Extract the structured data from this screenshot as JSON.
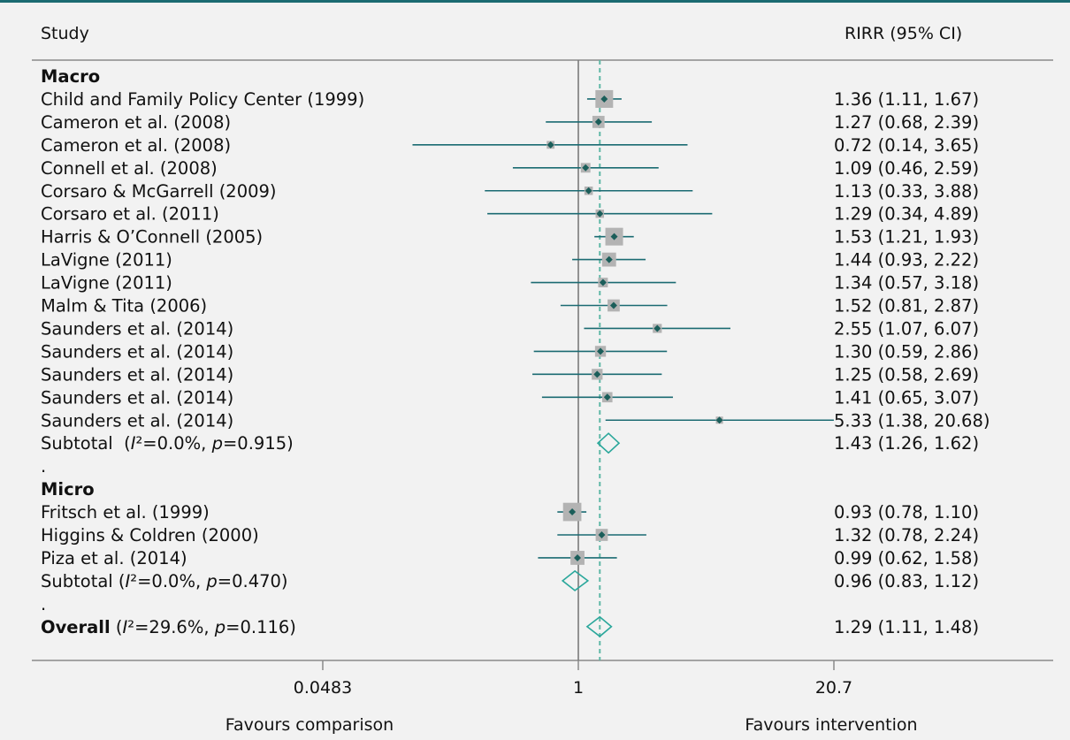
{
  "header": {
    "study_label": "Study",
    "estimate_label": "RIRR (95% CI)"
  },
  "colors": {
    "top_border": "#1b6b72",
    "ci_line": "#1b6b72",
    "point": "#1b5e5a",
    "weight_box": "#b3b3b3",
    "diamond": "#2aa79b",
    "overall_line": "#5fb8a6",
    "null_line": "#7a7a7a"
  },
  "chart_data": {
    "type": "forest",
    "measure": "RIRR (95% CI)",
    "x_scale": "log",
    "null_value": 1,
    "overall_reference": 1.29,
    "xticks": [
      {
        "value": 0.0483,
        "label": "0.0483"
      },
      {
        "value": 1,
        "label": "1"
      },
      {
        "value": 20.7,
        "label": "20.7"
      }
    ],
    "xlabel_left": "Favours comparison",
    "xlabel_right": "Favours intervention",
    "rows": [
      {
        "kind": "group",
        "label": "Macro"
      },
      {
        "kind": "study",
        "label": "Child and Family Policy Center (1999)",
        "est": 1.36,
        "lo": 1.11,
        "hi": 1.67,
        "text": "1.36 (1.11, 1.67)",
        "box": 1.0
      },
      {
        "kind": "study",
        "label": "Cameron et al. (2008)",
        "est": 1.27,
        "lo": 0.68,
        "hi": 2.39,
        "text": "1.27 (0.68, 2.39)",
        "box": 0.55
      },
      {
        "kind": "study",
        "label": "Cameron et al. (2008)",
        "est": 0.72,
        "lo": 0.14,
        "hi": 3.65,
        "text": "0.72 (0.14, 3.65)",
        "box": 0.2
      },
      {
        "kind": "study",
        "label": "Connell et al. (2008)",
        "est": 1.09,
        "lo": 0.46,
        "hi": 2.59,
        "text": "1.09 (0.46, 2.59)",
        "box": 0.35
      },
      {
        "kind": "study",
        "label": "Corsaro & McGarrell (2009)",
        "est": 1.13,
        "lo": 0.33,
        "hi": 3.88,
        "text": "1.13 (0.33, 3.88)",
        "box": 0.25
      },
      {
        "kind": "study",
        "label": "Corsaro et al. (2011)",
        "est": 1.29,
        "lo": 0.34,
        "hi": 4.89,
        "text": "1.29 (0.34, 4.89)",
        "box": 0.25
      },
      {
        "kind": "study",
        "label": "Harris & O’Connell (2005)",
        "est": 1.53,
        "lo": 1.21,
        "hi": 1.93,
        "text": "1.53 (1.21, 1.93)",
        "box": 1.0
      },
      {
        "kind": "study",
        "label": "LaVigne (2011)",
        "est": 1.44,
        "lo": 0.93,
        "hi": 2.22,
        "text": "1.44 (0.93, 2.22)",
        "box": 0.7
      },
      {
        "kind": "study",
        "label": "LaVigne (2011)",
        "est": 1.34,
        "lo": 0.57,
        "hi": 3.18,
        "text": "1.34 (0.57, 3.18)",
        "box": 0.35
      },
      {
        "kind": "study",
        "label": "Malm & Tita (2006)",
        "est": 1.52,
        "lo": 0.81,
        "hi": 2.87,
        "text": "1.52 (0.81, 2.87)",
        "box": 0.55
      },
      {
        "kind": "study",
        "label": "Saunders et al. (2014)",
        "est": 2.55,
        "lo": 1.07,
        "hi": 6.07,
        "text": "2.55 (1.07, 6.07)",
        "box": 0.3
      },
      {
        "kind": "study",
        "label": "Saunders et al. (2014)",
        "est": 1.3,
        "lo": 0.59,
        "hi": 2.86,
        "text": "1.30 (0.59, 2.86)",
        "box": 0.45
      },
      {
        "kind": "study",
        "label": "Saunders et al. (2014)",
        "est": 1.25,
        "lo": 0.58,
        "hi": 2.69,
        "text": "1.25 (0.58, 2.69)",
        "box": 0.45
      },
      {
        "kind": "study",
        "label": "Saunders et al. (2014)",
        "est": 1.41,
        "lo": 0.65,
        "hi": 3.07,
        "text": "1.41 (0.65, 3.07)",
        "box": 0.4
      },
      {
        "kind": "study",
        "label": "Saunders et al. (2014)",
        "est": 5.33,
        "lo": 1.38,
        "hi": 20.68,
        "text": "5.33 (1.38, 20.68)",
        "box": 0.15
      },
      {
        "kind": "subtotal",
        "label_html": "Subtotal&nbsp; (<tspan font-style=\"italic\">I</tspan>²=0.0%, <tspan font-style=\"italic\">p</tspan>=0.915)",
        "label": "Subtotal (I²=0.0%, p=0.915)",
        "est": 1.43,
        "lo": 1.26,
        "hi": 1.62,
        "text": "1.43 (1.26, 1.62)"
      },
      {
        "kind": "spacer",
        "label": "."
      },
      {
        "kind": "group",
        "label": "Micro"
      },
      {
        "kind": "study",
        "label": "Fritsch et al. (1999)",
        "est": 0.93,
        "lo": 0.78,
        "hi": 1.1,
        "text": "0.93 (0.78, 1.10)",
        "box": 1.05
      },
      {
        "kind": "study",
        "label": "Higgins & Coldren (2000)",
        "est": 1.32,
        "lo": 0.78,
        "hi": 2.24,
        "text": "1.32 (0.78, 2.24)",
        "box": 0.55
      },
      {
        "kind": "study",
        "label": "Piza et al. (2014)",
        "est": 0.99,
        "lo": 0.62,
        "hi": 1.58,
        "text": "0.99 (0.62, 1.58)",
        "box": 0.7
      },
      {
        "kind": "subtotal",
        "label": "Subtotal (I²=0.0%, p=0.470)",
        "est": 0.96,
        "lo": 0.83,
        "hi": 1.12,
        "text": "0.96 (0.83, 1.12)"
      },
      {
        "kind": "spacer",
        "label": "."
      },
      {
        "kind": "overall",
        "label": "Overall (I²=29.6%, p=0.116)",
        "est": 1.29,
        "lo": 1.11,
        "hi": 1.48,
        "text": "1.29 (1.11, 1.48)"
      }
    ]
  }
}
